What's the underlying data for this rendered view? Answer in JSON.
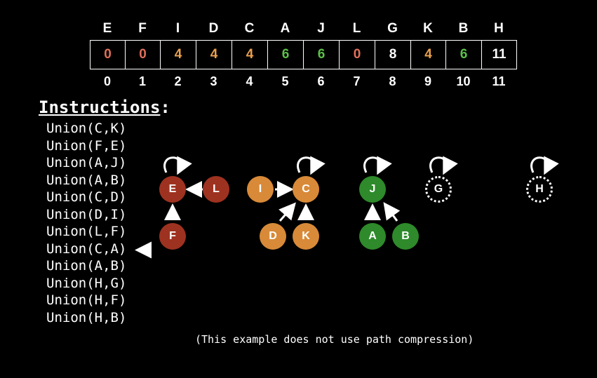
{
  "array": {
    "headers": [
      "E",
      "F",
      "I",
      "D",
      "C",
      "A",
      "J",
      "L",
      "G",
      "K",
      "B",
      "H"
    ],
    "values": [
      "0",
      "0",
      "4",
      "4",
      "4",
      "6",
      "6",
      "0",
      "8",
      "4",
      "6",
      "11"
    ],
    "value_colors": [
      "#e0705a",
      "#e0705a",
      "#e8a04e",
      "#e8a04e",
      "#e8a04e",
      "#5cc04a",
      "#5cc04a",
      "#e0705a",
      "#ffffff",
      "#e8a04e",
      "#5cc04a",
      "#ffffff"
    ],
    "indices": [
      "0",
      "1",
      "2",
      "3",
      "4",
      "5",
      "6",
      "7",
      "8",
      "9",
      "10",
      "11"
    ]
  },
  "instructions": {
    "title": "Instructions",
    "title_colon": ":",
    "items": [
      "Union(C,K)",
      "Union(F,E)",
      "Union(A,J)",
      "Union(A,B)",
      "Union(C,D)",
      "Union(D,I)",
      "Union(L,F)",
      "Union(C,A)",
      "Union(A,B)",
      "Union(H,G)",
      "Union(H,F)",
      "Union(H,B)"
    ],
    "current_index": 7
  },
  "nodes": [
    {
      "label": "E",
      "color": "#9e3220"
    },
    {
      "label": "L",
      "color": "#9e3220"
    },
    {
      "label": "F",
      "color": "#9e3220"
    },
    {
      "label": "I",
      "color": "#d88a38"
    },
    {
      "label": "C",
      "color": "#d88a38"
    },
    {
      "label": "D",
      "color": "#d88a38"
    },
    {
      "label": "K",
      "color": "#d88a38"
    },
    {
      "label": "J",
      "color": "#2e8a2a"
    },
    {
      "label": "A",
      "color": "#2e8a2a"
    },
    {
      "label": "B",
      "color": "#2e8a2a"
    },
    {
      "label": "G",
      "color": "hollow"
    },
    {
      "label": "H",
      "color": "hollow"
    }
  ],
  "note": "(This example does not use path compression)"
}
